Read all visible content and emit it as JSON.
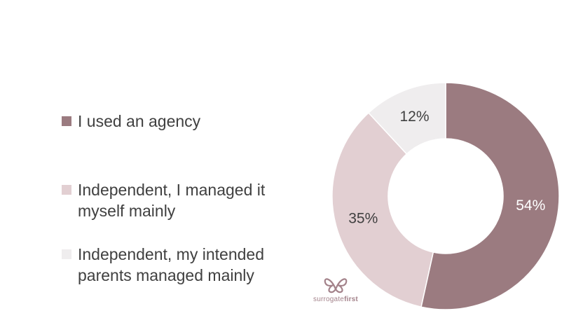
{
  "chart_data": {
    "type": "pie",
    "donut": true,
    "title": "",
    "legend_position": "left",
    "series": [
      {
        "name": "I used an agency",
        "value": 54,
        "label": "54%",
        "color": "#9b7b80",
        "label_color": "#ffffff"
      },
      {
        "name": "Independent, I managed it myself mainly",
        "value": 35,
        "label": "35%",
        "color": "#e2cfd2",
        "label_color": "#404040"
      },
      {
        "name": "Independent, my intended parents managed mainly",
        "value": 12,
        "label": "12%",
        "color": "#efedee",
        "label_color": "#404040"
      }
    ]
  },
  "logo": {
    "text_light": "surrogate",
    "text_bold": "first",
    "color": "#a3828a"
  }
}
